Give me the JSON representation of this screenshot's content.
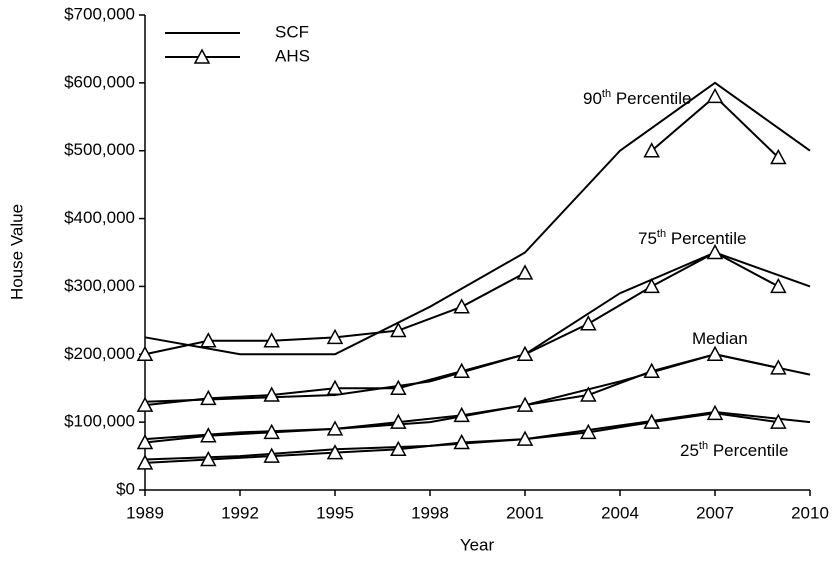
{
  "chart_data": {
    "type": "line",
    "x_label": "Year",
    "y_label": "House Value",
    "xlim": [
      1989,
      2010
    ],
    "xticks": [
      1989,
      1992,
      1995,
      1998,
      2001,
      2004,
      2007,
      2010
    ],
    "ylim": [
      0,
      700000
    ],
    "yticks": [
      {
        "value": 0,
        "label": "$0"
      },
      {
        "value": 100000,
        "label": "$100,000"
      },
      {
        "value": 200000,
        "label": "$200,000"
      },
      {
        "value": 300000,
        "label": "$300,000"
      },
      {
        "value": 400000,
        "label": "$400,000"
      },
      {
        "value": 500000,
        "label": "$500,000"
      },
      {
        "value": 600000,
        "label": "$600,000"
      },
      {
        "value": 700000,
        "label": "$700,000"
      }
    ],
    "legend": "upper left",
    "annotations": [
      [
        "90",
        "th",
        " Percentile"
      ],
      [
        "75",
        "th",
        " Percentile"
      ],
      [
        "Median"
      ],
      [
        "25",
        "th",
        " Percentile"
      ]
    ],
    "series": [
      {
        "name": "SCF",
        "color": "#000000",
        "marker": "none",
        "x": [
          1989,
          1992,
          1995,
          1998,
          2001,
          2004,
          2007,
          2010
        ],
        "values": [
          225000,
          200000,
          200000,
          270000,
          350000,
          500000,
          600000,
          500000
        ]
      },
      {
        "name": "AHS",
        "color": "#000000",
        "marker": "triangle",
        "x": [
          1989,
          1991,
          1993,
          1995,
          1997,
          1999,
          2001,
          2003,
          2005,
          2007,
          2009
        ],
        "values": [
          200000,
          220000,
          220000,
          225000,
          235000,
          270000,
          320000,
          null,
          500000,
          580000,
          490000
        ]
      },
      {
        "name": "SCF",
        "color": "#000000",
        "marker": "none",
        "x": [
          1989,
          1992,
          1995,
          1998,
          2001,
          2004,
          2007,
          2010
        ],
        "values": [
          130000,
          135000,
          140000,
          160000,
          200000,
          290000,
          350000,
          300000
        ]
      },
      {
        "name": "AHS",
        "color": "#000000",
        "marker": "triangle",
        "x": [
          1989,
          1991,
          1993,
          1995,
          1997,
          1999,
          2001,
          2003,
          2005,
          2007,
          2009
        ],
        "values": [
          125000,
          135000,
          140000,
          150000,
          150000,
          175000,
          200000,
          245000,
          300000,
          350000,
          300000
        ]
      },
      {
        "name": "SCF",
        "color": "#000000",
        "marker": "none",
        "x": [
          1989,
          1992,
          1995,
          1998,
          2001,
          2004,
          2007,
          2010
        ],
        "values": [
          75000,
          85000,
          90000,
          100000,
          125000,
          160000,
          200000,
          170000
        ]
      },
      {
        "name": "AHS",
        "color": "#000000",
        "marker": "triangle",
        "x": [
          1989,
          1991,
          1993,
          1995,
          1997,
          1999,
          2001,
          2003,
          2005,
          2007,
          2009
        ],
        "values": [
          70000,
          80000,
          85000,
          90000,
          100000,
          110000,
          125000,
          140000,
          175000,
          200000,
          180000
        ]
      },
      {
        "name": "SCF",
        "color": "#000000",
        "marker": "none",
        "x": [
          1989,
          1992,
          1995,
          1998,
          2001,
          2004,
          2007,
          2010
        ],
        "values": [
          45000,
          50000,
          60000,
          65000,
          75000,
          95000,
          115000,
          100000
        ]
      },
      {
        "name": "AHS",
        "color": "#000000",
        "marker": "triangle",
        "x": [
          1989,
          1991,
          1993,
          1995,
          1997,
          1999,
          2001,
          2003,
          2005,
          2007,
          2009
        ],
        "values": [
          40000,
          45000,
          50000,
          55000,
          60000,
          70000,
          75000,
          85000,
          100000,
          113000,
          100000
        ]
      }
    ]
  }
}
